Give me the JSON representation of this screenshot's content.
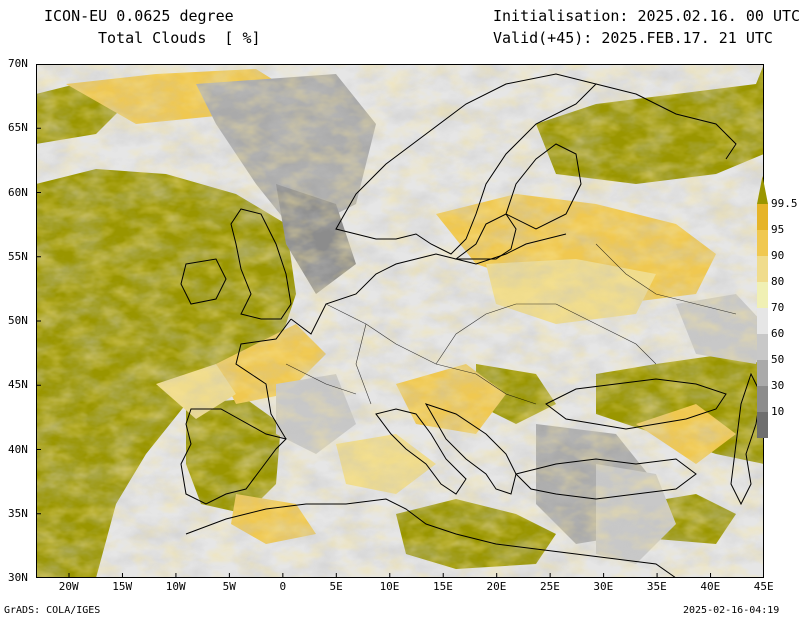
{
  "header": {
    "model": "ICON-EU 0.0625 degree",
    "field": "Total Clouds  [ %]",
    "init": "Initialisation: 2025.02.16. 00 UTC",
    "valid": "Valid(+45): 2025.FEB.17. 21 UTC"
  },
  "axes": {
    "lat_labels": [
      "70N",
      "65N",
      "60N",
      "55N",
      "50N",
      "45N",
      "40N",
      "35N",
      "30N"
    ],
    "lon_labels": [
      "20W",
      "15W",
      "10W",
      "5W",
      "0",
      "5E",
      "10E",
      "15E",
      "20E",
      "25E",
      "30E",
      "35E",
      "40E",
      "45E"
    ]
  },
  "legend": {
    "labels": [
      "99.5",
      "95",
      "90",
      "80",
      "70",
      "60",
      "50",
      "30",
      "10"
    ],
    "colors": {
      "c10": "#6e6e6e",
      "c30": "#8c8c8c",
      "c50": "#aaaaaa",
      "c60": "#c8c8c8",
      "c70": "#e6e6e6",
      "c80": "#f0f0b4",
      "c90": "#f0dc8c",
      "c95": "#f0c850",
      "c99": "#e6b428",
      "c100": "#9a9600"
    }
  },
  "footer": {
    "left": "GrADS: COLA/IGES",
    "right": "2025-02-16-04:19"
  }
}
